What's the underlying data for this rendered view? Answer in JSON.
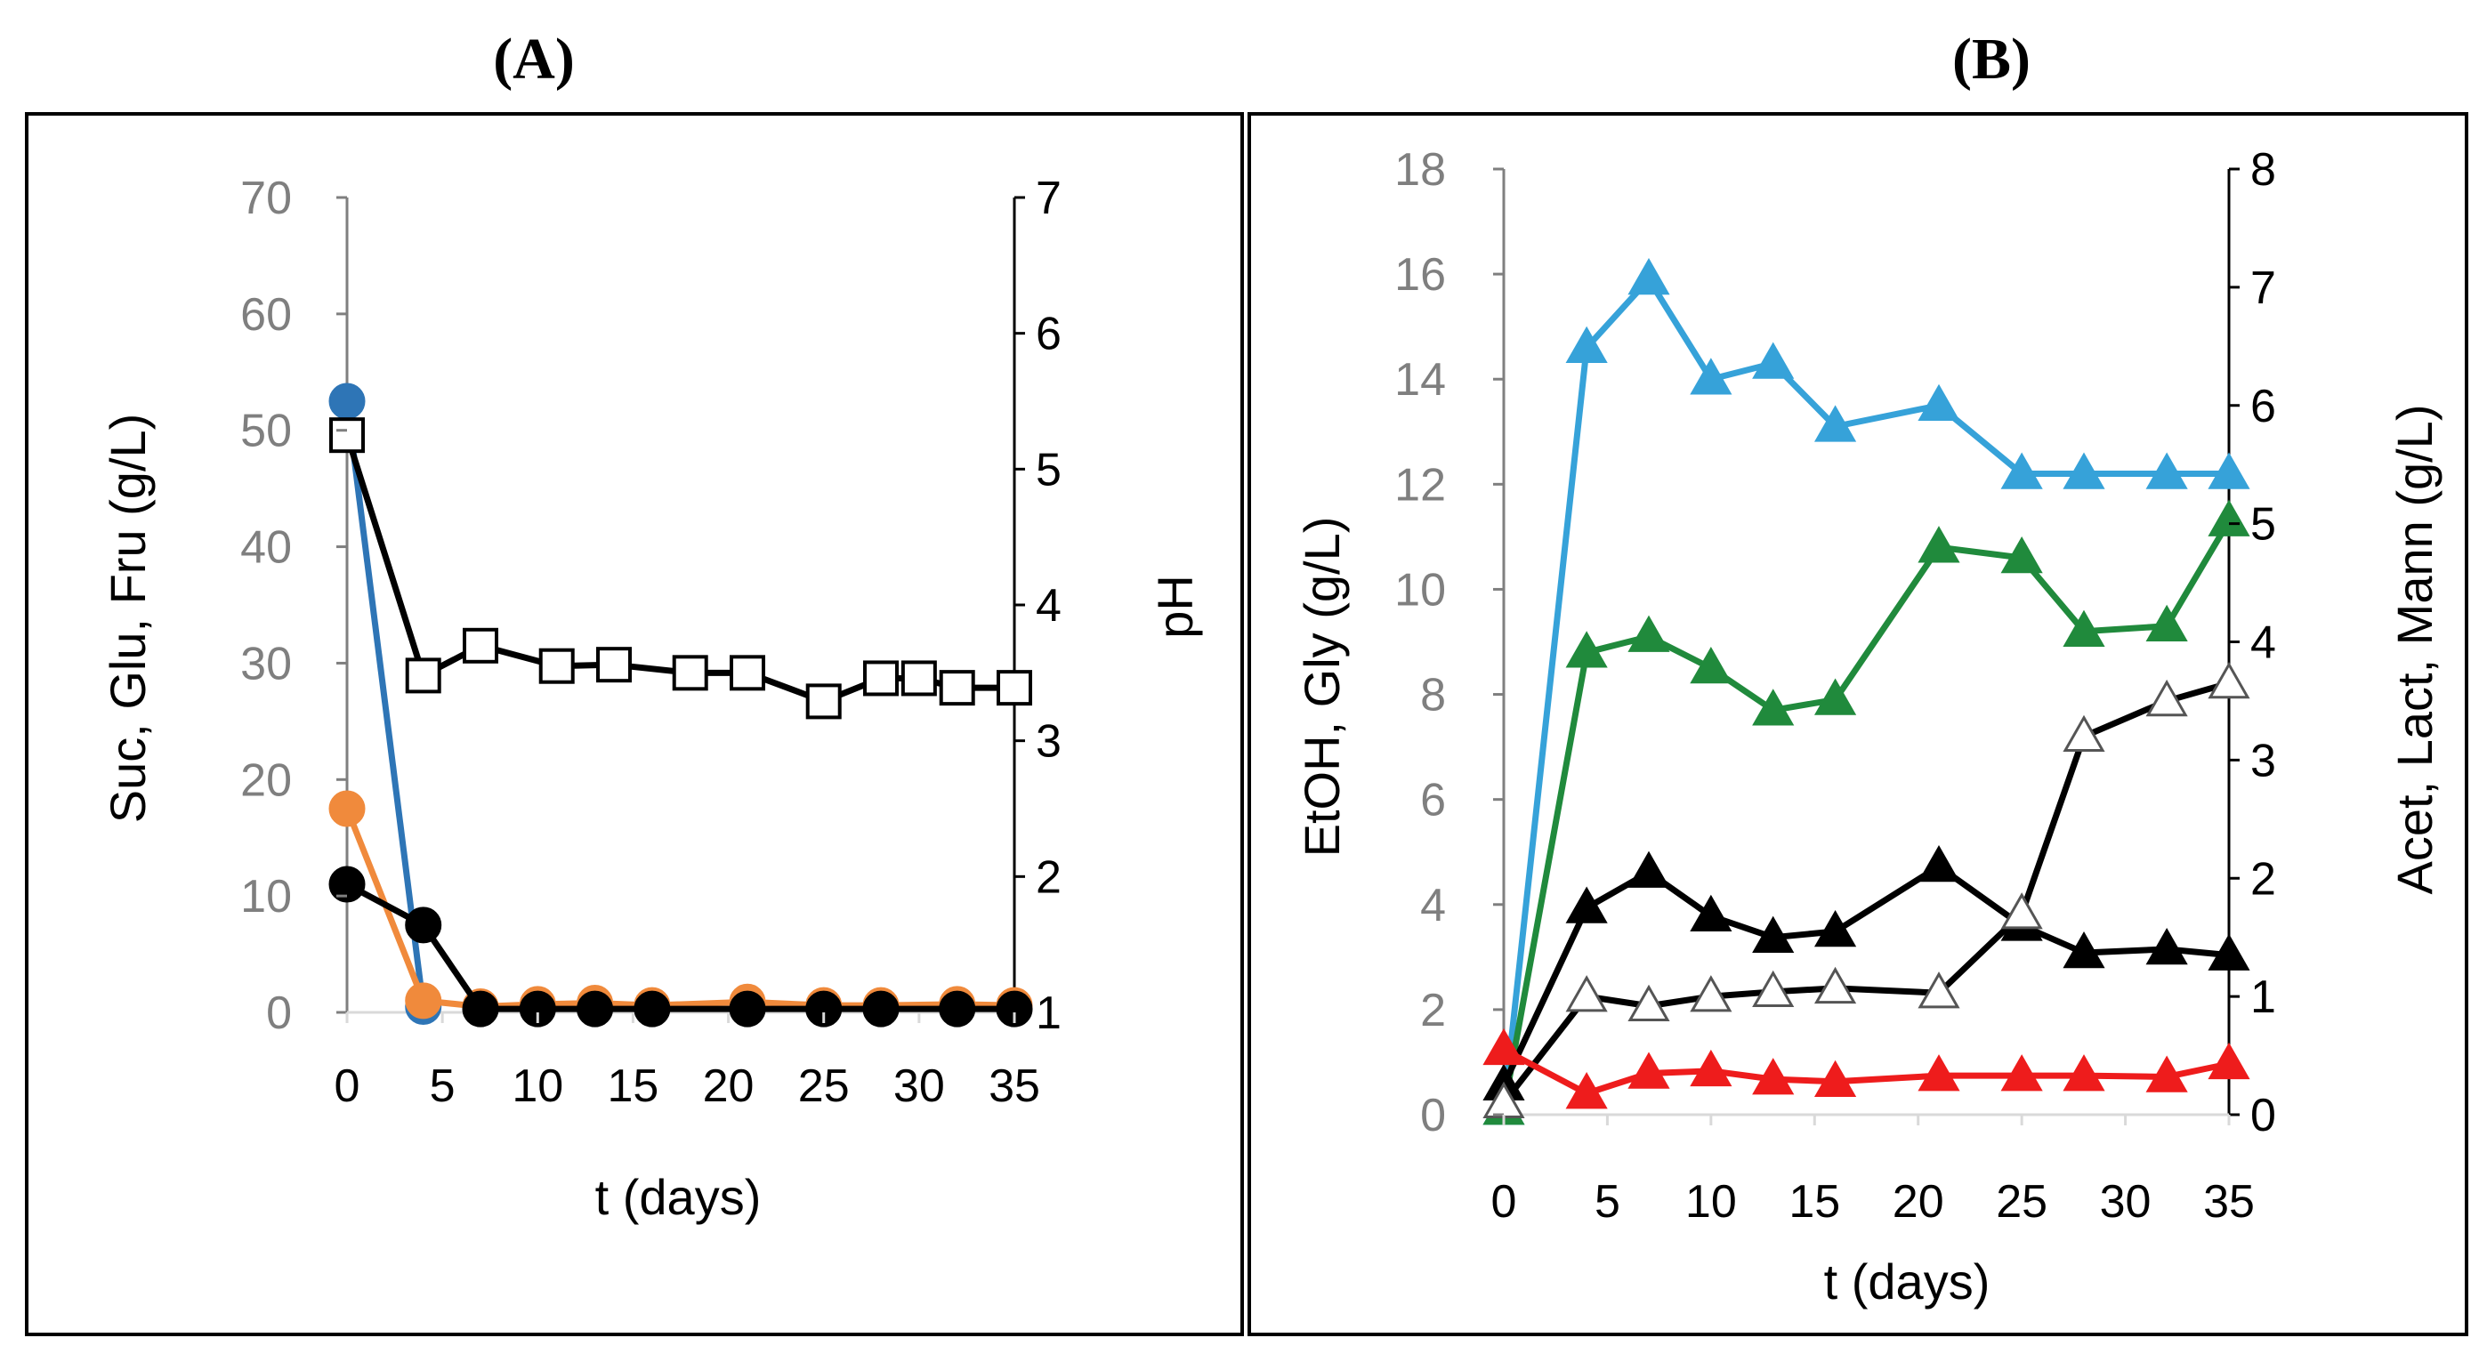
{
  "chart_data": [
    {
      "type": "line",
      "panel_label": "(A)",
      "xlabel": "t (days)",
      "ylabel_left": "Suc, Glu, Fru (g/L)",
      "ylabel_right": "pH",
      "xlim": [
        0,
        35
      ],
      "ylim_left": [
        0,
        70
      ],
      "ylim_right": [
        1,
        7
      ],
      "x_ticks": [
        "0",
        "5",
        "10",
        "15",
        "20",
        "25",
        "30",
        "35"
      ],
      "y_left_ticks": [
        "0",
        "10",
        "20",
        "30",
        "40",
        "50",
        "60",
        "70"
      ],
      "y_right_ticks": [
        "1",
        "2",
        "3",
        "4",
        "5",
        "6",
        "7"
      ],
      "series": [
        {
          "name": "Sucrose",
          "axis": "left",
          "color": "#2e75b6",
          "marker": "circle",
          "filled": true,
          "x": [
            0,
            4
          ],
          "y": [
            52.5,
            0.5
          ]
        },
        {
          "name": "Fructose",
          "axis": "left",
          "color": "#f08a3c",
          "marker": "circle",
          "filled": true,
          "x": [
            0,
            4,
            7,
            10,
            13,
            16,
            21,
            25,
            28,
            32,
            35
          ],
          "y": [
            17.5,
            1,
            0.5,
            0.7,
            0.8,
            0.6,
            0.9,
            0.6,
            0.6,
            0.7,
            0.6
          ]
        },
        {
          "name": "Glucose",
          "axis": "left",
          "color": "#000000",
          "marker": "circle",
          "filled": true,
          "x": [
            0,
            4,
            7,
            10,
            13,
            16,
            21,
            25,
            28,
            32,
            35
          ],
          "y": [
            11,
            7.5,
            0.3,
            0.3,
            0.3,
            0.3,
            0.3,
            0.3,
            0.3,
            0.3,
            0.3
          ]
        },
        {
          "name": "pH",
          "axis": "right",
          "color": "#000000",
          "marker": "square",
          "filled": false,
          "x": [
            0,
            4,
            7,
            11,
            14,
            18,
            21,
            25,
            28,
            30,
            32,
            35
          ],
          "y": [
            5.25,
            3.48,
            3.7,
            3.55,
            3.56,
            3.5,
            3.5,
            3.29,
            3.46,
            3.46,
            3.39,
            3.39
          ]
        }
      ]
    },
    {
      "type": "line",
      "panel_label": "(B)",
      "xlabel": "t (days)",
      "ylabel_left": "EtOH, Gly (g/L)",
      "ylabel_right": "Acet, Lact, Mann (g/L)",
      "xlim": [
        0,
        35
      ],
      "ylim_left": [
        0,
        18
      ],
      "ylim_right": [
        0,
        8
      ],
      "x_ticks": [
        "0",
        "5",
        "10",
        "15",
        "20",
        "25",
        "30",
        "35"
      ],
      "y_left_ticks": [
        "0",
        "2",
        "4",
        "6",
        "8",
        "10",
        "12",
        "14",
        "16",
        "18"
      ],
      "y_right_ticks": [
        "0",
        "1",
        "2",
        "3",
        "4",
        "5",
        "6",
        "7",
        "8"
      ],
      "series": [
        {
          "name": "Ethanol",
          "axis": "left",
          "color": "#36a2d9",
          "marker": "triangle",
          "filled": true,
          "x": [
            0,
            4,
            7,
            10,
            13,
            16,
            21,
            25,
            28,
            32,
            35
          ],
          "y": [
            0.1,
            14.6,
            15.9,
            14,
            14.3,
            13.1,
            13.5,
            12.2,
            12.2,
            12.2,
            12.2
          ]
        },
        {
          "name": "Glycerol",
          "axis": "left",
          "color": "#208a3c",
          "marker": "triangle",
          "filled": true,
          "x": [
            0,
            4,
            7,
            10,
            13,
            16,
            21,
            25,
            28,
            32,
            35
          ],
          "y": [
            0.1,
            8.8,
            9.1,
            8.5,
            7.7,
            7.9,
            10.8,
            10.6,
            9.2,
            9.3,
            11.3
          ]
        },
        {
          "name": "Acetic acid",
          "axis": "right",
          "color": "#000000",
          "marker": "triangle",
          "filled": true,
          "x": [
            0,
            4,
            7,
            10,
            13,
            16,
            21,
            25,
            28,
            32,
            35
          ],
          "y": [
            0.25,
            1.75,
            2.05,
            1.68,
            1.5,
            1.55,
            2.1,
            1.6,
            1.37,
            1.4,
            1.35
          ]
        },
        {
          "name": "Lactic acid",
          "axis": "right",
          "color": "#000000",
          "marker": "triangle",
          "filled": false,
          "x": [
            0,
            4,
            7,
            10,
            13,
            16,
            21,
            25,
            28,
            32,
            35
          ],
          "y": [
            0.1,
            1,
            0.92,
            1,
            1.04,
            1.07,
            1.03,
            1.7,
            3.2,
            3.5,
            3.65
          ]
        },
        {
          "name": "Mannitol",
          "axis": "right",
          "color": "#ee1c1c",
          "marker": "triangle",
          "filled": true,
          "x": [
            0,
            4,
            7,
            10,
            13,
            16,
            21,
            25,
            28,
            32,
            35
          ],
          "y": [
            0.55,
            0.18,
            0.35,
            0.37,
            0.3,
            0.28,
            0.33,
            0.33,
            0.33,
            0.32,
            0.43
          ]
        }
      ]
    }
  ]
}
